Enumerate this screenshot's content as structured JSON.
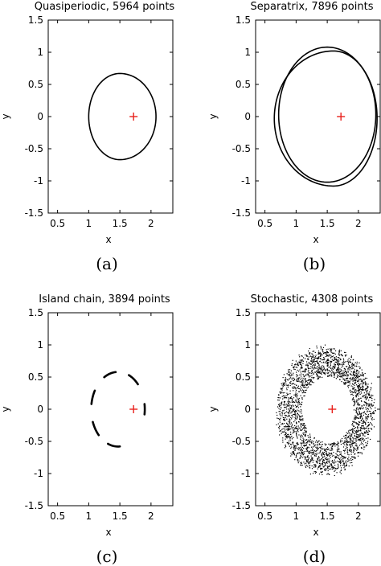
{
  "chart_data": [
    {
      "type": "scatter",
      "title": "Quasiperiodic, 5964 points",
      "panel_label": "(a)",
      "xlabel": "x",
      "ylabel": "y",
      "xlim": [
        0.35,
        2.35
      ],
      "ylim": [
        -1.5,
        1.5
      ],
      "xticks": [
        "0.5",
        "1",
        "1.5",
        "2"
      ],
      "yticks": [
        "1.5",
        "1",
        "0.5",
        "0",
        "-0.5",
        "-1",
        "-1.5"
      ],
      "marker": {
        "x": 1.72,
        "y": 0,
        "color": "#e8211c"
      },
      "series": [
        {
          "kind": "closed-curve",
          "x_min": 1.0,
          "x_max": 2.08,
          "y_min": -0.67,
          "y_max": 0.67,
          "x_at_y_extremes": 1.5,
          "color": "#000000"
        }
      ]
    },
    {
      "type": "scatter",
      "title": "Separatrix, 7896 points",
      "panel_label": "(b)",
      "xlabel": "x",
      "ylabel": "y",
      "xlim": [
        0.35,
        2.35
      ],
      "ylim": [
        -1.5,
        1.5
      ],
      "xticks": [
        "0.5",
        "1",
        "1.5",
        "2"
      ],
      "yticks": [
        "1.5",
        "1",
        "0.5",
        "0",
        "-0.5",
        "-1",
        "-1.5"
      ],
      "marker": {
        "x": 1.72,
        "y": 0,
        "color": "#e8211c"
      },
      "series": [
        {
          "kind": "closed-curve",
          "x_min": 0.65,
          "x_max": 2.3,
          "y_min": -1.08,
          "y_max": 1.02,
          "x_at_y_extremes": 1.6,
          "color": "#000000"
        },
        {
          "kind": "closed-curve",
          "x_min": 0.72,
          "x_max": 2.28,
          "y_min": -1.02,
          "y_max": 1.08,
          "x_at_y_extremes": 1.5,
          "color": "#000000"
        }
      ]
    },
    {
      "type": "scatter",
      "title": "Island chain, 3894 points",
      "panel_label": "(c)",
      "xlabel": "x",
      "ylabel": "y",
      "xlim": [
        0.35,
        2.35
      ],
      "ylim": [
        -1.5,
        1.5
      ],
      "xticks": [
        "0.5",
        "1",
        "1.5",
        "2"
      ],
      "yticks": [
        "1.5",
        "1",
        "0.5",
        "0",
        "-0.5",
        "-1",
        "-1.5"
      ],
      "marker": {
        "x": 1.72,
        "y": 0,
        "color": "#e8211c"
      },
      "series": [
        {
          "kind": "island-arcs",
          "center_x": 1.47,
          "radius_x": 0.43,
          "radius_y": 0.58,
          "arcs_deg": [
            [
              -8,
              8
            ],
            [
              42,
              66
            ],
            [
              95,
              121
            ],
            [
              150,
              172
            ],
            [
              200,
              224
            ],
            [
              248,
              274
            ]
          ],
          "color": "#000000"
        }
      ]
    },
    {
      "type": "scatter",
      "title": "Stochastic, 4308 points",
      "panel_label": "(d)",
      "xlabel": "x",
      "ylabel": "y",
      "xlim": [
        0.35,
        2.35
      ],
      "ylim": [
        -1.5,
        1.5
      ],
      "xticks": [
        "0.5",
        "1",
        "1.5",
        "2"
      ],
      "yticks": [
        "1.5",
        "1",
        "0.5",
        "0",
        "-0.5",
        "-1",
        "-1.5"
      ],
      "marker": {
        "x": 1.58,
        "y": 0,
        "color": "#e8211c"
      },
      "series": [
        {
          "kind": "chaotic-annulus",
          "x_min": 0.7,
          "x_max": 2.25,
          "y_min": -1.0,
          "y_max": 0.95,
          "hole_x_min": 1.1,
          "hole_x_max": 1.92,
          "hole_y_min": -0.52,
          "hole_y_max": 0.5,
          "color": "#000000"
        }
      ]
    }
  ]
}
